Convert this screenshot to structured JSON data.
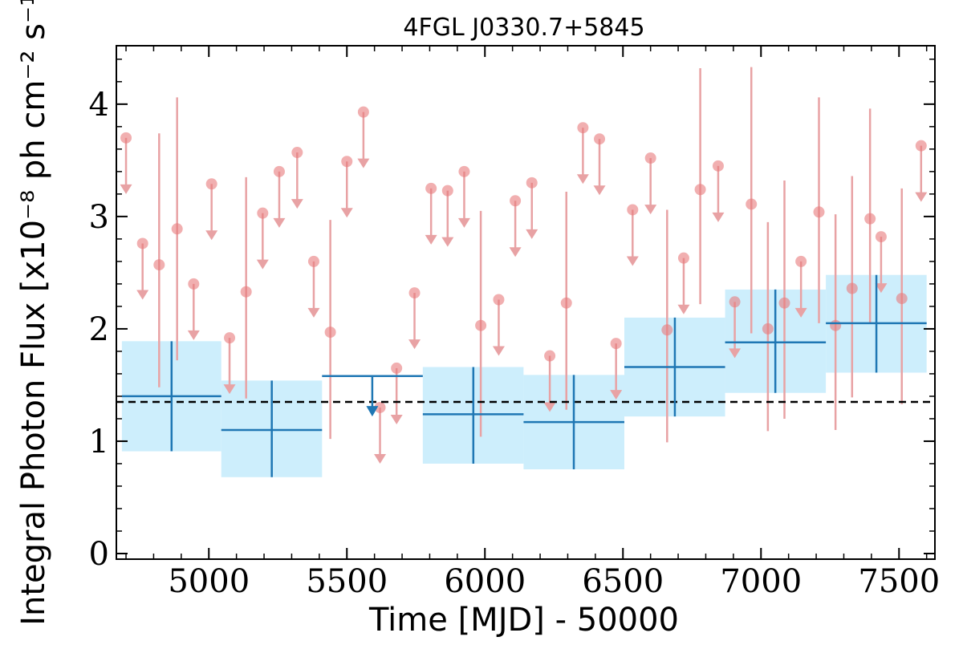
{
  "chart_data": {
    "type": "scatter",
    "title": "4FGL J0330.7+5845",
    "xlabel": "Time [MJD] - 50000",
    "ylabel": "Integral Photon Flux [x10⁻⁸ ph cm⁻² s⁻¹]",
    "xlim": [
      4665,
      7630
    ],
    "ylim": [
      -0.05,
      4.52
    ],
    "x_ticks": [
      5000,
      5500,
      6000,
      6500,
      7000,
      7500
    ],
    "x_tick_labels": [
      "5000",
      "5500",
      "6000",
      "6500",
      "7000",
      "7500"
    ],
    "y_ticks": [
      0,
      1,
      2,
      3,
      4
    ],
    "y_tick_labels": [
      "0",
      "1",
      "2",
      "3",
      "4"
    ],
    "reference_line": {
      "y": 1.35,
      "style": "dashed",
      "color": "#000000"
    },
    "colors": {
      "yearly_points": "#1f77b4",
      "yearly_boxes": "#cdeefc",
      "monthly_points": "#e8797c",
      "monthly_errorbars": "#e8a2a4"
    },
    "yearly_bins": [
      {
        "x_start": 4685,
        "x_end": 5045,
        "x": 4865,
        "y": 1.4,
        "y_low": 0.91,
        "y_high": 1.89,
        "upper_limit": false
      },
      {
        "x_start": 5045,
        "x_end": 5410,
        "x": 5228,
        "y": 1.1,
        "y_low": 0.68,
        "y_high": 1.54,
        "upper_limit": false
      },
      {
        "x_start": 5410,
        "x_end": 5775,
        "x": 5592,
        "y": 1.58,
        "upper_limit": true,
        "arrow_to": 1.22
      },
      {
        "x_start": 5775,
        "x_end": 6140,
        "x": 5958,
        "y": 1.24,
        "y_low": 0.8,
        "y_high": 1.66,
        "upper_limit": false
      },
      {
        "x_start": 6140,
        "x_end": 6505,
        "x": 6322,
        "y": 1.17,
        "y_low": 0.75,
        "y_high": 1.59,
        "upper_limit": false
      },
      {
        "x_start": 6505,
        "x_end": 6870,
        "x": 6688,
        "y": 1.66,
        "y_low": 1.22,
        "y_high": 2.1,
        "upper_limit": false
      },
      {
        "x_start": 6870,
        "x_end": 7235,
        "x": 7052,
        "y": 1.88,
        "y_low": 1.43,
        "y_high": 2.35,
        "upper_limit": false
      },
      {
        "x_start": 7235,
        "x_end": 7600,
        "x": 7418,
        "y": 2.05,
        "y_low": 1.61,
        "y_high": 2.48,
        "upper_limit": false
      }
    ],
    "monthly_upper_limits": [
      {
        "x": 4700,
        "y": 3.7
      },
      {
        "x": 4760,
        "y": 2.76
      },
      {
        "x": 4945,
        "y": 2.4
      },
      {
        "x": 5010,
        "y": 3.29
      },
      {
        "x": 5075,
        "y": 1.92
      },
      {
        "x": 5195,
        "y": 3.03
      },
      {
        "x": 5255,
        "y": 3.4
      },
      {
        "x": 5320,
        "y": 3.57
      },
      {
        "x": 5380,
        "y": 2.6
      },
      {
        "x": 5500,
        "y": 3.49
      },
      {
        "x": 5560,
        "y": 3.93
      },
      {
        "x": 5680,
        "y": 1.65
      },
      {
        "x": 5745,
        "y": 2.32
      },
      {
        "x": 5805,
        "y": 3.25
      },
      {
        "x": 5865,
        "y": 3.23
      },
      {
        "x": 5925,
        "y": 3.4
      },
      {
        "x": 6050,
        "y": 2.26
      },
      {
        "x": 6110,
        "y": 3.14
      },
      {
        "x": 6170,
        "y": 3.3
      },
      {
        "x": 6235,
        "y": 1.76
      },
      {
        "x": 6355,
        "y": 3.79
      },
      {
        "x": 6415,
        "y": 3.69
      },
      {
        "x": 6475,
        "y": 1.87
      },
      {
        "x": 6535,
        "y": 3.06
      },
      {
        "x": 6600,
        "y": 3.52
      },
      {
        "x": 6720,
        "y": 2.63
      },
      {
        "x": 6845,
        "y": 3.45
      },
      {
        "x": 6905,
        "y": 2.24
      },
      {
        "x": 7145,
        "y": 2.6
      },
      {
        "x": 7435,
        "y": 2.82
      },
      {
        "x": 7580,
        "y": 3.63
      }
    ],
    "monthly_detections": [
      {
        "x": 4820,
        "y": 2.57,
        "y_low": 1.48,
        "y_high": 3.74
      },
      {
        "x": 4885,
        "y": 2.89,
        "y_low": 1.72,
        "y_high": 4.06
      },
      {
        "x": 5135,
        "y": 2.33,
        "y_low": 1.38,
        "y_high": 3.35
      },
      {
        "x": 5440,
        "y": 1.97,
        "y_low": 1.02,
        "y_high": 2.97
      },
      {
        "x": 5620,
        "y": 1.3,
        "y_low": 1.3,
        "y_high": 1.3
      },
      {
        "x": 5985,
        "y": 2.03,
        "y_low": 1.04,
        "y_high": 3.05
      },
      {
        "x": 6295,
        "y": 2.23,
        "y_low": 1.28,
        "y_high": 3.22
      },
      {
        "x": 6660,
        "y": 1.99,
        "y_low": 0.99,
        "y_high": 3.06
      },
      {
        "x": 6780,
        "y": 3.24,
        "y_low": 2.22,
        "y_high": 4.32
      },
      {
        "x": 6965,
        "y": 3.11,
        "y_low": 1.96,
        "y_high": 4.33
      },
      {
        "x": 7025,
        "y": 2.0,
        "y_low": 1.09,
        "y_high": 2.95
      },
      {
        "x": 7085,
        "y": 2.23,
        "y_low": 1.2,
        "y_high": 3.32
      },
      {
        "x": 7210,
        "y": 3.04,
        "y_low": 2.05,
        "y_high": 4.06
      },
      {
        "x": 7270,
        "y": 2.03,
        "y_low": 1.1,
        "y_high": 3.02
      },
      {
        "x": 7330,
        "y": 2.36,
        "y_low": 1.39,
        "y_high": 3.36
      },
      {
        "x": 7395,
        "y": 2.98,
        "y_low": 2.05,
        "y_high": 3.96
      },
      {
        "x": 7510,
        "y": 2.27,
        "y_low": 1.33,
        "y_high": 3.25
      }
    ]
  }
}
